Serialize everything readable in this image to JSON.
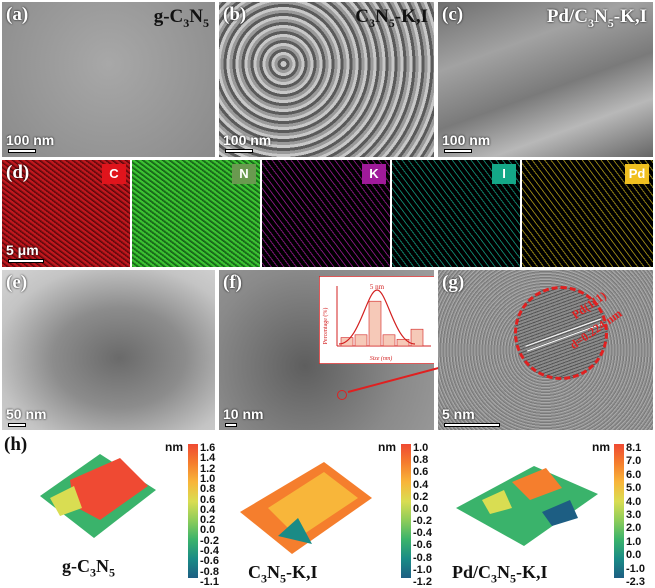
{
  "panels": {
    "a": {
      "tag": "(a)",
      "title_main": "g-C",
      "sub1": "3",
      "mid": "N",
      "sub2": "5",
      "scale": "100 nm"
    },
    "b": {
      "tag": "(b)",
      "title_main": "C",
      "sub1": "3",
      "mid": "N",
      "sub2": "5",
      "suffix": "-K,I",
      "scale": "100 nm"
    },
    "c": {
      "tag": "(c)",
      "title_main": "Pd/C",
      "sub1": "3",
      "mid": "N",
      "sub2": "5",
      "suffix": "-K,I",
      "scale": "100 nm"
    },
    "d": {
      "tag": "(d)",
      "scale": "5 μm",
      "elements": [
        "C",
        "N",
        "K",
        "I",
        "Pd"
      ]
    },
    "e": {
      "tag": "(e)",
      "scale": "50 nm"
    },
    "f": {
      "tag": "(f)",
      "scale": "10 nm"
    },
    "g": {
      "tag": "(g)",
      "scale": "5 nm",
      "lattice_plane": "Pd(111)",
      "lattice_spacing": "d=0.224 nm"
    },
    "h": {
      "tag": "(h)"
    }
  },
  "inset_histogram": {
    "xlabel": "Size (nm)",
    "ylabel": "Percentage (%)",
    "peak_label": "5 nm",
    "bars_percent": [
      0.15,
      0.2,
      0.8,
      0.2,
      0.12,
      0.3
    ]
  },
  "afm": [
    {
      "unit": "nm",
      "ticks": [
        "1.6",
        "1.4",
        "1.2",
        "1.0",
        "0.8",
        "0.6",
        "0.4",
        "0.2",
        "0.0",
        "-0.2",
        "-0.4",
        "-0.6",
        "-0.8",
        "-1.1"
      ],
      "cap_main": "g-C",
      "sub1": "3",
      "mid": "N",
      "sub2": "5",
      "suffix": ""
    },
    {
      "unit": "nm",
      "ticks": [
        "1.0",
        "0.8",
        "0.6",
        "0.4",
        "0.2",
        "0.0",
        "-0.2",
        "-0.4",
        "-0.6",
        "-0.8",
        "-1.0",
        "-1.2"
      ],
      "cap_main": "C",
      "sub1": "3",
      "mid": "N",
      "sub2": "5",
      "suffix": "-K,I"
    },
    {
      "unit": "nm",
      "ticks": [
        "8.1",
        "7.0",
        "6.0",
        "5.0",
        "4.0",
        "3.0",
        "2.0",
        "1.0",
        "0.0",
        "-1.0",
        "-2.3"
      ],
      "cap_main": "Pd/C",
      "sub1": "3",
      "mid": "N",
      "sub2": "5",
      "suffix": "-K,I"
    }
  ],
  "colors": {
    "C": "#e0141c",
    "N": "#2fae2a",
    "K": "#a01a9a",
    "I": "#14a888",
    "Pd": "#f0c020"
  }
}
